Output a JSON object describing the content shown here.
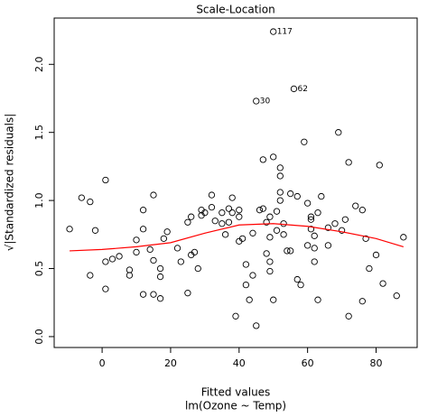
{
  "chart_data": {
    "type": "scatter",
    "title": "Scale-Location",
    "x_label": "Fitted values",
    "subtitle": "lm(Ozone ~ Temp)",
    "y_label": "√|Standardized residuals|",
    "xlim": [
      -14,
      92
    ],
    "ylim": [
      -0.08,
      2.34
    ],
    "xticks": [
      0,
      20,
      40,
      60,
      80
    ],
    "yticks": [
      {
        "value": 0,
        "label": "0.0"
      },
      {
        "value": 0.5,
        "label": "0.5"
      },
      {
        "value": 1,
        "label": "1.0"
      },
      {
        "value": 1.5,
        "label": "1.5"
      },
      {
        "value": 2,
        "label": "2.0"
      }
    ],
    "series": [
      {
        "color": "#000000",
        "x": [
          50,
          56,
          45,
          -9.5,
          -6,
          -3.5,
          -3.5,
          -2,
          1,
          1,
          1,
          3,
          5,
          8,
          8,
          10,
          10,
          12,
          12,
          12,
          14,
          15,
          15,
          15,
          17,
          17,
          17,
          18,
          19,
          22,
          23,
          25,
          25,
          26,
          26,
          27,
          28,
          29,
          29,
          30,
          32,
          32,
          33,
          35,
          35,
          36,
          37,
          37,
          38,
          38,
          40,
          40,
          39,
          40,
          41,
          42,
          42,
          43,
          44,
          44,
          45,
          46,
          47,
          47,
          48,
          48,
          49,
          49,
          49,
          49,
          50,
          50,
          51,
          51,
          52,
          52,
          52,
          52,
          53,
          53,
          54,
          55,
          55,
          57,
          57,
          58,
          59,
          60,
          60,
          61,
          61,
          61,
          62,
          62,
          62,
          63,
          63,
          64,
          66,
          66,
          68,
          69,
          70,
          71,
          72,
          72,
          74,
          76,
          76,
          77,
          78,
          80,
          81,
          82,
          86,
          88
        ],
        "y": [
          2.24,
          1.82,
          1.73,
          0.79,
          1.02,
          0.99,
          0.45,
          0.78,
          1.15,
          0.55,
          0.35,
          0.57,
          0.59,
          0.49,
          0.45,
          0.62,
          0.71,
          0.79,
          0.31,
          0.93,
          0.64,
          1.04,
          0.56,
          0.31,
          0.5,
          0.44,
          0.28,
          0.72,
          0.77,
          0.65,
          0.55,
          0.84,
          0.32,
          0.88,
          0.6,
          0.62,
          0.5,
          0.93,
          0.89,
          0.91,
          1.04,
          0.95,
          0.85,
          0.91,
          0.83,
          0.75,
          0.84,
          0.94,
          1.02,
          0.91,
          0.93,
          0.88,
          0.15,
          0.7,
          0.72,
          0.53,
          0.38,
          0.27,
          0.76,
          0.45,
          0.08,
          0.93,
          1.3,
          0.94,
          0.84,
          0.61,
          0.55,
          0.88,
          0.73,
          0.48,
          0.27,
          1.32,
          0.92,
          0.78,
          1.24,
          1.18,
          1.06,
          1.0,
          0.83,
          0.75,
          0.63,
          1.05,
          0.63,
          1.03,
          0.42,
          0.38,
          1.43,
          0.67,
          0.98,
          0.79,
          0.88,
          0.86,
          0.74,
          0.65,
          0.55,
          0.27,
          0.91,
          1.03,
          0.67,
          0.8,
          0.83,
          1.5,
          0.78,
          0.86,
          1.28,
          0.15,
          0.96,
          0.93,
          0.26,
          0.72,
          0.5,
          0.6,
          1.26,
          0.39,
          0.3,
          0.73
        ],
        "point_labels": [
          "117",
          "62",
          "30",
          null,
          null,
          null,
          null,
          null,
          null,
          null,
          null,
          null,
          null,
          null,
          null,
          null,
          null,
          null,
          null,
          null,
          null,
          null,
          null,
          null,
          null,
          null,
          null,
          null,
          null,
          null,
          null,
          null,
          null,
          null,
          null,
          null,
          null,
          null,
          null,
          null,
          null,
          null,
          null,
          null,
          null,
          null,
          null,
          null,
          null,
          null,
          null,
          null,
          null,
          null,
          null,
          null,
          null,
          null,
          null,
          null,
          null,
          null,
          null,
          null,
          null,
          null,
          null,
          null,
          null,
          null,
          null,
          null,
          null,
          null,
          null,
          null,
          null,
          null,
          null,
          null,
          null,
          null,
          null,
          null,
          null,
          null,
          null,
          null,
          null,
          null,
          null,
          null,
          null,
          null,
          null,
          null,
          null,
          null,
          null,
          null,
          null,
          null,
          null,
          null,
          null,
          null,
          null,
          null,
          null,
          null,
          null,
          null,
          null,
          null,
          null,
          null
        ]
      }
    ],
    "smooth": {
      "color": "#ff0000",
      "x": [
        -9.5,
        0,
        10,
        20,
        30,
        40,
        50,
        60,
        70,
        80,
        88
      ],
      "y": [
        0.63,
        0.64,
        0.66,
        0.69,
        0.76,
        0.82,
        0.83,
        0.81,
        0.77,
        0.72,
        0.66
      ]
    }
  }
}
